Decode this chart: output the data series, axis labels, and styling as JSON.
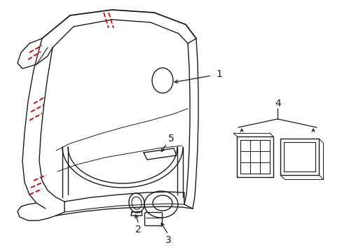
{
  "bg_color": "#ffffff",
  "line_color": "#1a1a1a",
  "red_color": "#cc0000",
  "label_color": "#1a1a1a",
  "figsize": [
    4.89,
    3.6
  ],
  "dpi": 100,
  "lw": 1.0
}
